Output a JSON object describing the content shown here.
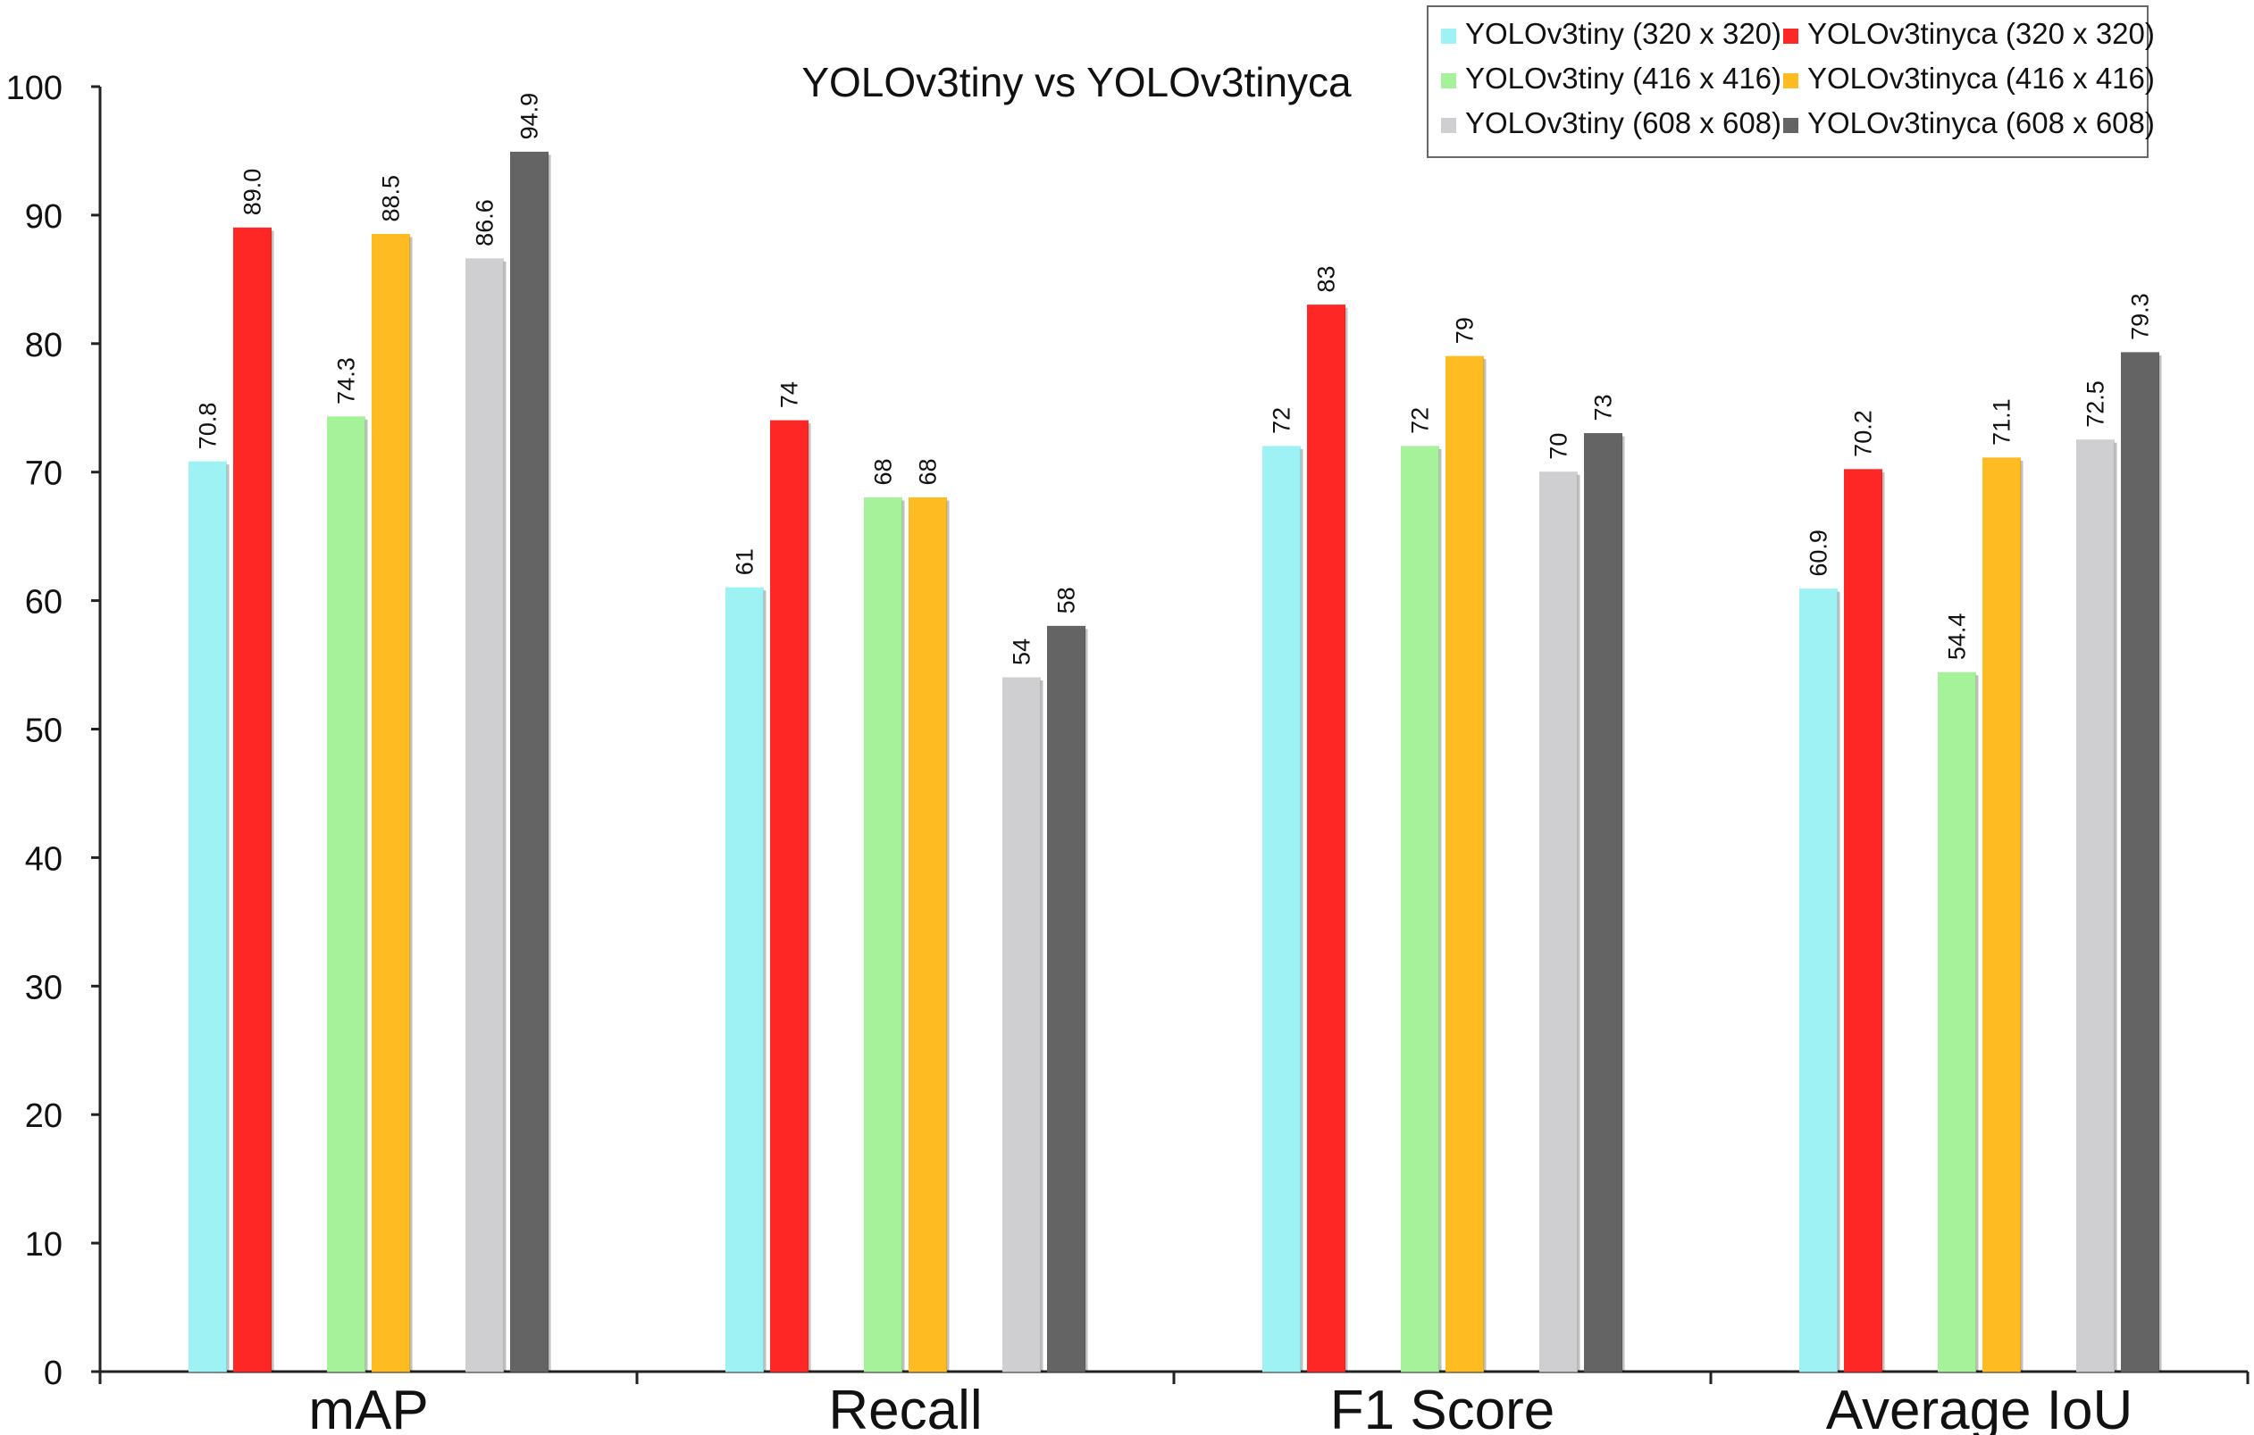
{
  "chart_data": {
    "type": "bar",
    "title": "YOLOv3tiny vs YOLOv3tinyca",
    "xlabel": "",
    "ylabel": "",
    "ylim": [
      0,
      100
    ],
    "yticks": [
      0,
      10,
      20,
      30,
      40,
      50,
      60,
      70,
      80,
      90,
      100
    ],
    "ytick_labels": [
      "0",
      "10",
      "20",
      "30",
      "40",
      "50",
      "60",
      "70",
      "80",
      "90",
      "100"
    ],
    "grid": false,
    "legend_position": "top-right",
    "categories": [
      "mAP",
      "Recall",
      "F1 Score",
      "Average IoU"
    ],
    "series": [
      {
        "name": "YOLOv3tiny (320 x 320)",
        "color": "#9EF2F4",
        "values": [
          70.8,
          61,
          72,
          60.9
        ],
        "labels": [
          "70.8",
          "61",
          "72",
          "60.9"
        ]
      },
      {
        "name": "YOLOv3tinyca (320 x 320)",
        "color": "#FF2626",
        "values": [
          89.0,
          74,
          83,
          70.2
        ],
        "labels": [
          "89.0",
          "74",
          "83",
          "70.2"
        ]
      },
      {
        "name": "YOLOv3tiny (416 x 416)",
        "color": "#A6F29A",
        "values": [
          74.3,
          68,
          72,
          54.4
        ],
        "labels": [
          "74.3",
          "68",
          "72",
          "54.4"
        ]
      },
      {
        "name": "YOLOv3tinyca (416 x 416)",
        "color": "#FFBB22",
        "values": [
          88.5,
          68,
          79,
          71.1
        ],
        "labels": [
          "88.5",
          "68",
          "79",
          "71.1"
        ]
      },
      {
        "name": "YOLOv3tiny (608 x 608)",
        "color": "#CFCFD1",
        "values": [
          86.6,
          54,
          70,
          72.5
        ],
        "labels": [
          "86.6",
          "54",
          "70",
          "72.5"
        ]
      },
      {
        "name": "YOLOv3tinyca (608 x 608)",
        "color": "#646464",
        "values": [
          94.9,
          58,
          73,
          79.3
        ],
        "labels": [
          "94.9",
          "58",
          "73",
          "79.3"
        ]
      }
    ]
  }
}
